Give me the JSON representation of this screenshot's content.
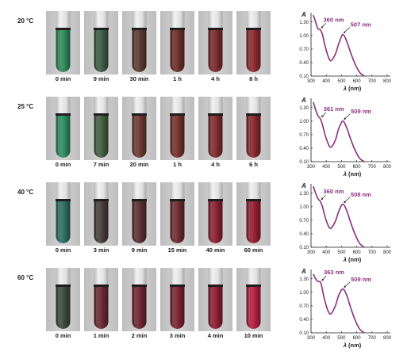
{
  "rows": [
    {
      "temperature": "20 °C",
      "labels": [
        "0 min",
        "9 min",
        "30 min",
        "1 h",
        "4 h",
        "8 h"
      ],
      "tube_colors": [
        "#2f8a5a",
        "#3c5a42",
        "#5a3a30",
        "#6a2e28",
        "#7a2a2c",
        "#8a2a2e"
      ],
      "peak1": "360 nm",
      "peak2": "507 nm"
    },
    {
      "temperature": "25 °C",
      "labels": [
        "0 min",
        "7 min",
        "20 min",
        "1 h",
        "4 h",
        "6 h"
      ],
      "tube_colors": [
        "#2e8c64",
        "#445c40",
        "#6a3a30",
        "#74302c",
        "#7e2c2e",
        "#86282e"
      ],
      "peak1": "361 nm",
      "peak2": "509 nm"
    },
    {
      "temperature": "40 °C",
      "labels": [
        "0 min",
        "3 min",
        "9 min",
        "15 min",
        "40 min",
        "60 min"
      ],
      "tube_colors": [
        "#2e6e62",
        "#463c3a",
        "#5a2e30",
        "#6e2a30",
        "#8a2030",
        "#941e30"
      ],
      "peak1": "360 nm",
      "peak2": "508 nm"
    },
    {
      "temperature": "60 °C",
      "labels": [
        "0 min",
        "1 min",
        "2 min",
        "3 min",
        "4 min",
        "10 min"
      ],
      "tube_colors": [
        "#3a4a40",
        "#6a2830",
        "#6e2430",
        "#7a2232",
        "#8c1e32",
        "#b22040"
      ],
      "peak1": "363 nm",
      "peak2": "509 nm"
    }
  ],
  "spectrum_axis": {
    "y_label": "A",
    "y_ticks": [
      "1.30",
      "1.00",
      "0.70",
      "0.40",
      "0.10"
    ],
    "x_ticks": [
      "300",
      "400",
      "500",
      "600",
      "700",
      "800"
    ],
    "x_label_symbol": "λ",
    "x_label_unit": "(nm)"
  },
  "chart_data": [
    {
      "type": "line",
      "title": "",
      "xlabel": "λ (nm)",
      "ylabel": "A",
      "xlim": [
        300,
        800
      ],
      "ylim": [
        0.1,
        1.4
      ],
      "annotations": [
        "360 nm",
        "507 nm"
      ],
      "series": [
        {
          "x": [
            315,
            330,
            345,
            360,
            375,
            390,
            410,
            430,
            460,
            480,
            500,
            507,
            520,
            540,
            560,
            590,
            620,
            650
          ],
          "y": [
            1.45,
            1.3,
            1.15,
            1.13,
            1.02,
            0.8,
            0.56,
            0.44,
            0.59,
            0.8,
            0.98,
            1.02,
            0.98,
            0.82,
            0.62,
            0.36,
            0.18,
            0.1
          ]
        }
      ]
    },
    {
      "type": "line",
      "title": "",
      "xlabel": "λ (nm)",
      "ylabel": "A",
      "xlim": [
        300,
        800
      ],
      "ylim": [
        0.1,
        1.4
      ],
      "annotations": [
        "361 nm",
        "509 nm"
      ],
      "series": [
        {
          "x": [
            315,
            330,
            345,
            361,
            375,
            390,
            410,
            430,
            460,
            480,
            500,
            509,
            520,
            540,
            560,
            590,
            620,
            650
          ],
          "y": [
            1.42,
            1.25,
            1.12,
            1.05,
            0.92,
            0.72,
            0.52,
            0.42,
            0.58,
            0.82,
            0.97,
            1.0,
            0.96,
            0.8,
            0.6,
            0.35,
            0.17,
            0.1
          ]
        }
      ]
    },
    {
      "type": "line",
      "title": "",
      "xlabel": "λ (nm)",
      "ylabel": "A",
      "xlim": [
        300,
        800
      ],
      "ylim": [
        0.1,
        1.4
      ],
      "annotations": [
        "360 nm",
        "508 nm"
      ],
      "series": [
        {
          "x": [
            315,
            330,
            345,
            360,
            375,
            390,
            410,
            430,
            460,
            480,
            500,
            508,
            520,
            540,
            560,
            590,
            620,
            650
          ],
          "y": [
            1.45,
            1.3,
            1.18,
            1.12,
            1.0,
            0.8,
            0.6,
            0.52,
            0.68,
            0.88,
            1.03,
            1.05,
            1.02,
            0.86,
            0.65,
            0.38,
            0.18,
            0.1
          ]
        }
      ]
    },
    {
      "type": "line",
      "title": "",
      "xlabel": "λ (nm)",
      "ylabel": "A",
      "xlim": [
        300,
        800
      ],
      "ylim": [
        0.1,
        1.4
      ],
      "annotations": [
        "363 nm",
        "509 nm"
      ],
      "series": [
        {
          "x": [
            315,
            330,
            345,
            363,
            375,
            390,
            410,
            430,
            460,
            480,
            500,
            509,
            520,
            540,
            560,
            590,
            620,
            650
          ],
          "y": [
            1.4,
            1.3,
            1.24,
            1.22,
            1.05,
            0.82,
            0.6,
            0.52,
            0.7,
            0.92,
            1.05,
            1.07,
            1.04,
            0.88,
            0.66,
            0.38,
            0.18,
            0.1
          ]
        }
      ]
    }
  ],
  "colors": {
    "curve": "#8a2f7e",
    "annotation": "#8a2f7e",
    "axis": "#1a1a1a",
    "tube_background": "#c9c9c9",
    "tube_glass": "#e4e4e4",
    "cap": "#1e1e1e"
  }
}
